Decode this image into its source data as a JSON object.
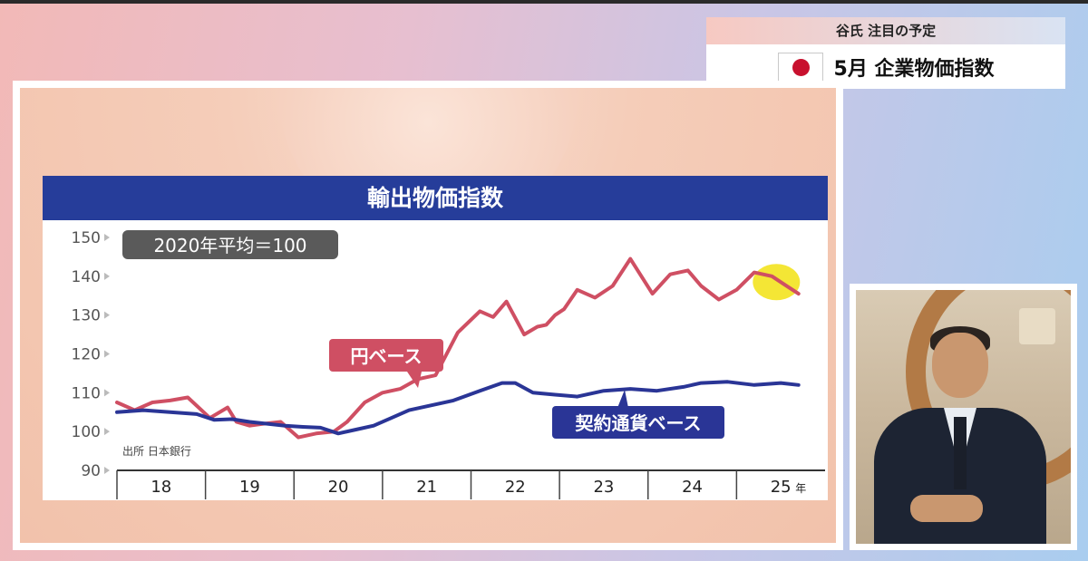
{
  "schedule": {
    "header": "谷氏 注目の予定",
    "title": "5月 企業物価指数",
    "flag_icon": "japan-flag-icon"
  },
  "chart_data": {
    "type": "line",
    "title": "輸出物価指数",
    "note": "2020年平均＝100",
    "source": "出所 日本銀行",
    "ylim": [
      90,
      150
    ],
    "yticks": [
      150,
      140,
      130,
      120,
      110,
      100,
      90
    ],
    "xlim": [
      2017.5,
      2025.5
    ],
    "xtick_labels": [
      "18",
      "19",
      "20",
      "21",
      "22",
      "23",
      "24",
      "25"
    ],
    "x_unit": "年",
    "grid": false,
    "series": [
      {
        "name": "円ベース",
        "color": "#cf4f63",
        "x": [
          2017.5,
          2017.7,
          2017.9,
          2018.1,
          2018.3,
          2018.55,
          2018.75,
          2018.85,
          2019.0,
          2019.15,
          2019.35,
          2019.55,
          2019.75,
          2019.95,
          2020.1,
          2020.3,
          2020.5,
          2020.7,
          2020.9,
          2021.1,
          2021.35,
          2021.6,
          2021.75,
          2021.9,
          2022.1,
          2022.25,
          2022.35,
          2022.45,
          2022.55,
          2022.7,
          2022.9,
          2023.1,
          2023.3,
          2023.55,
          2023.75,
          2023.95,
          2024.1,
          2024.3,
          2024.5,
          2024.7,
          2024.9,
          2025.0,
          2025.1,
          2025.2
        ],
        "values": [
          107.5,
          105.5,
          107.5,
          108.0,
          108.8,
          103.5,
          106.2,
          102.5,
          101.5,
          102.0,
          102.5,
          98.5,
          99.5,
          100.0,
          102.5,
          107.5,
          110.0,
          111.0,
          113.5,
          114.5,
          125.5,
          131.0,
          129.5,
          133.5,
          125.0,
          127.0,
          127.5,
          130.0,
          131.5,
          136.5,
          134.5,
          137.5,
          144.5,
          135.5,
          140.5,
          141.5,
          137.5,
          134.0,
          136.5,
          141.0,
          140.0,
          138.5,
          137.0,
          135.5
        ]
      },
      {
        "name": "契約通貨ベース",
        "color": "#2a3596",
        "x": [
          2017.5,
          2017.8,
          2018.1,
          2018.4,
          2018.6,
          2018.8,
          2019.0,
          2019.2,
          2019.4,
          2019.6,
          2019.8,
          2020.0,
          2020.2,
          2020.4,
          2020.6,
          2020.8,
          2021.0,
          2021.3,
          2021.6,
          2021.85,
          2022.0,
          2022.2,
          2022.45,
          2022.7,
          2023.0,
          2023.3,
          2023.6,
          2023.9,
          2024.1,
          2024.4,
          2024.7,
          2025.0,
          2025.2
        ],
        "values": [
          105.0,
          105.5,
          105.0,
          104.5,
          103.0,
          103.2,
          102.5,
          102.0,
          101.5,
          101.2,
          101.0,
          99.5,
          100.5,
          101.5,
          103.5,
          105.5,
          106.5,
          108.0,
          110.5,
          112.5,
          112.5,
          110.0,
          109.5,
          109.0,
          110.5,
          111.0,
          110.5,
          111.5,
          112.5,
          112.8,
          112.0,
          112.5,
          112.0
        ]
      }
    ],
    "callouts": [
      {
        "text": "円ベース",
        "color": "#cf4f63"
      },
      {
        "text": "契約通貨ベース",
        "color": "#2a3596"
      }
    ],
    "highlight_color": "#f3e52a"
  }
}
